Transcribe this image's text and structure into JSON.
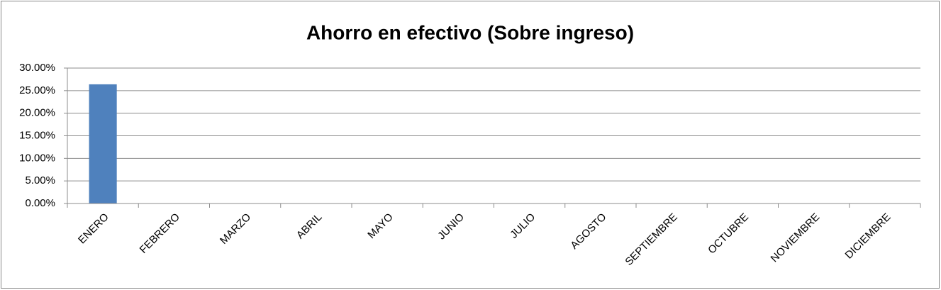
{
  "chart_data": {
    "type": "bar",
    "title": "Ahorro en efectivo (Sobre ingreso)",
    "categories": [
      "ENERO",
      "FEBRERO",
      "MARZO",
      "ABRIL",
      "MAYO",
      "JUNIO",
      "JULIO",
      "AGOSTO",
      "SEPTIEMBRE",
      "OCTUBRE",
      "NOVIEMBRE",
      "DICIEMBRE"
    ],
    "values": [
      26.4,
      0,
      0,
      0,
      0,
      0,
      0,
      0,
      0,
      0,
      0,
      0
    ],
    "color": "#4f81bd",
    "ylim": [
      0,
      30
    ],
    "yticks": [
      {
        "value": 0,
        "label": "0.00%"
      },
      {
        "value": 5,
        "label": "5.00%"
      },
      {
        "value": 10,
        "label": "10.00%"
      },
      {
        "value": 15,
        "label": "15.00%"
      },
      {
        "value": 20,
        "label": "20.00%"
      },
      {
        "value": 25,
        "label": "25.00%"
      },
      {
        "value": 30,
        "label": "30.00%"
      }
    ],
    "grid": true
  }
}
